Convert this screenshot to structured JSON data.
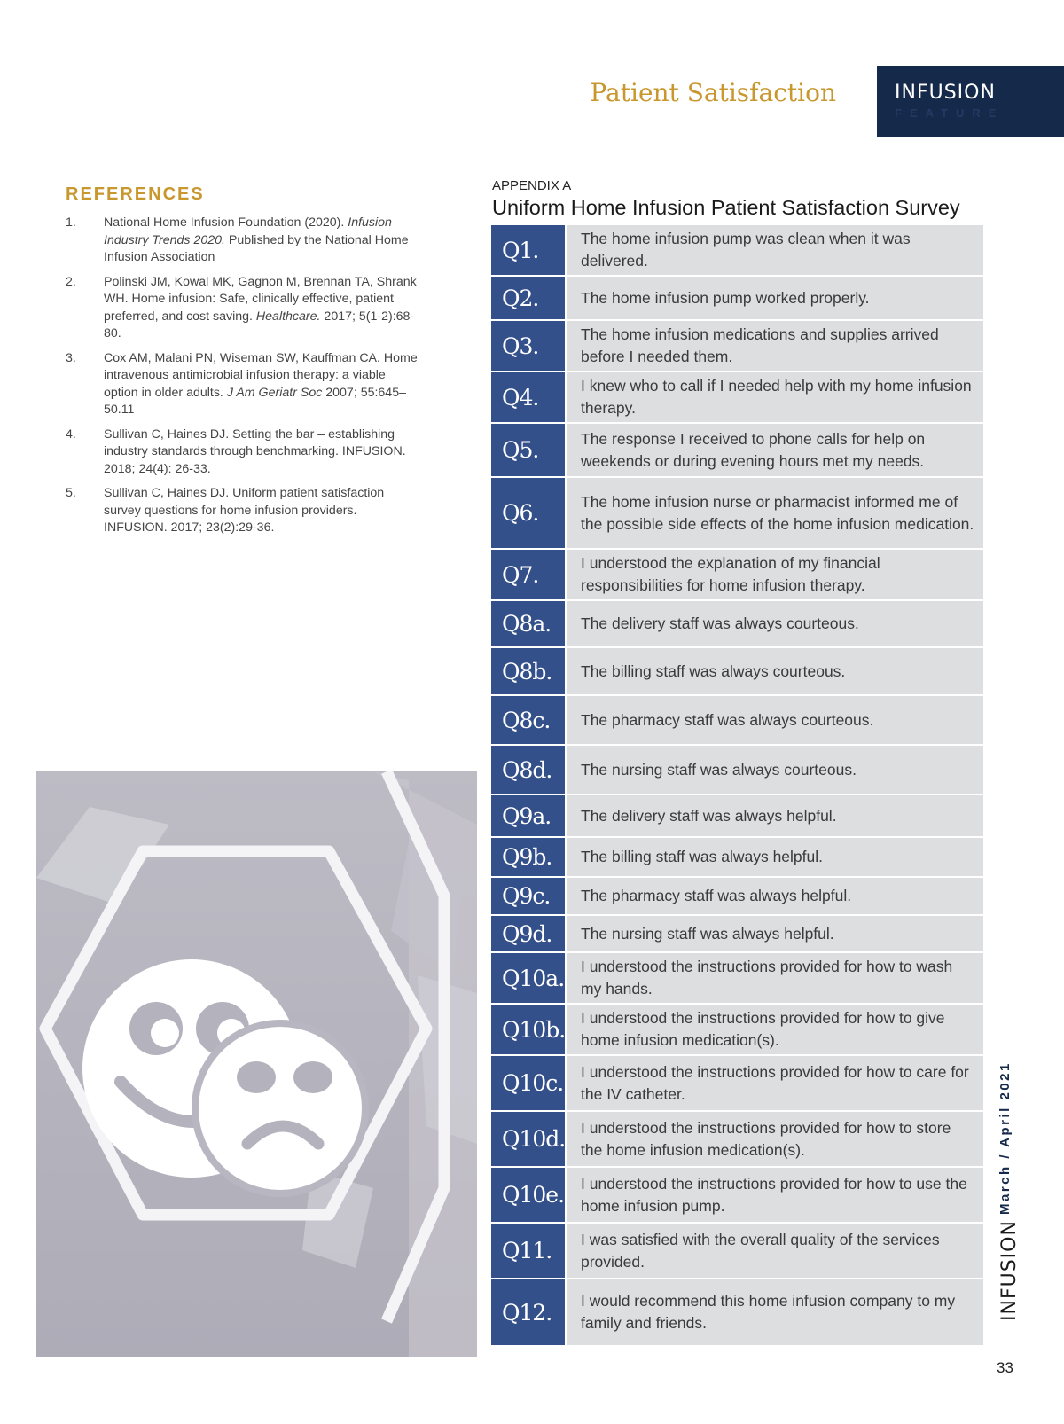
{
  "header": {
    "section_title": "Patient Satisfaction",
    "brand_name": "INFUSION",
    "brand_sub": "FEATURE"
  },
  "references": {
    "title": "REFERENCES",
    "items": [
      {
        "num": "1.",
        "pre": "National Home Infusion Foundation (2020). ",
        "italic": "Infusion Industry Trends 2020.",
        "post": " Published by the National Home Infusion Association"
      },
      {
        "num": "2.",
        "pre": "Polinski JM, Kowal MK, Gagnon M, Brennan TA, Shrank WH. Home infusion: Safe, clinically effective, patient preferred, and cost saving. ",
        "italic": "Healthcare.",
        "post": " 2017; 5(1-2):68-80."
      },
      {
        "num": "3.",
        "pre": "Cox AM, Malani PN, Wiseman SW, Kauffman CA. Home intravenous antimicrobial infusion therapy: a viable option in older adults. ",
        "italic": "J Am Geriatr Soc",
        "post": " 2007; 55:645–50.11"
      },
      {
        "num": "4.",
        "pre": "Sullivan C, Haines DJ. Setting the bar – establishing industry standards through benchmarking. INFUSION. 2018; 24(4): 26-33.",
        "italic": "",
        "post": ""
      },
      {
        "num": "5.",
        "pre": "Sullivan C, Haines DJ. Uniform patient satisfaction survey questions for home infusion providers. INFUSION. 2017; 23(2):29-36.",
        "italic": "",
        "post": ""
      }
    ]
  },
  "appendix": {
    "label": "APPENDIX A",
    "title": "Uniform Home Infusion Patient Satisfaction Survey",
    "questions": [
      {
        "q": "Q1.",
        "text": "The home infusion pump was clean when it was delivered."
      },
      {
        "q": "Q2.",
        "text": "The home infusion pump worked properly."
      },
      {
        "q": "Q3.",
        "text": "The home infusion medications and supplies arrived before I needed them."
      },
      {
        "q": "Q4.",
        "text": "I knew who to call if I needed help with my home infusion therapy."
      },
      {
        "q": "Q5.",
        "text": "The response I received to phone calls for help on weekends or during evening hours met my needs."
      },
      {
        "q": "Q6.",
        "text": "The home infusion nurse or pharmacist informed me of the possible side effects of the home infusion medication."
      },
      {
        "q": "Q7.",
        "text": "I understood the explanation of my financial responsibilities for home infusion therapy."
      },
      {
        "q": "Q8a.",
        "text": "The delivery staff was always courteous."
      },
      {
        "q": "Q8b.",
        "text": "The billing staff was always courteous."
      },
      {
        "q": "Q8c.",
        "text": "The pharmacy staff was always courteous."
      },
      {
        "q": "Q8d.",
        "text": "The nursing staff was always courteous."
      },
      {
        "q": "Q9a.",
        "text": "The delivery staff was always helpful."
      },
      {
        "q": "Q9b.",
        "text": "The billing staff was always helpful."
      },
      {
        "q": "Q9c.",
        "text": "The pharmacy staff was always helpful."
      },
      {
        "q": "Q9d.",
        "text": "The nursing staff was always helpful."
      },
      {
        "q": "Q10a.",
        "text": "I understood the instructions provided for how to wash my hands."
      },
      {
        "q": "Q10b.",
        "text": "I understood the instructions provided for how to give home infusion medication(s)."
      },
      {
        "q": "Q10c.",
        "text": "I understood the instructions provided for how to care for the IV catheter."
      },
      {
        "q": "Q10d.",
        "text": "I understood the instructions provided for how to store the home infusion medication(s)."
      },
      {
        "q": "Q10e.",
        "text": "I understood the instructions provided for how to use the home infusion pump."
      },
      {
        "q": "Q11.",
        "text": "I was satisfied with the overall quality of the services provided."
      },
      {
        "q": "Q12.",
        "text": "I would recommend this home infusion company to my family and friends."
      }
    ]
  },
  "footer": {
    "issue_date": "March / April 2021",
    "brand": "INFUSION",
    "page_number": "33"
  }
}
